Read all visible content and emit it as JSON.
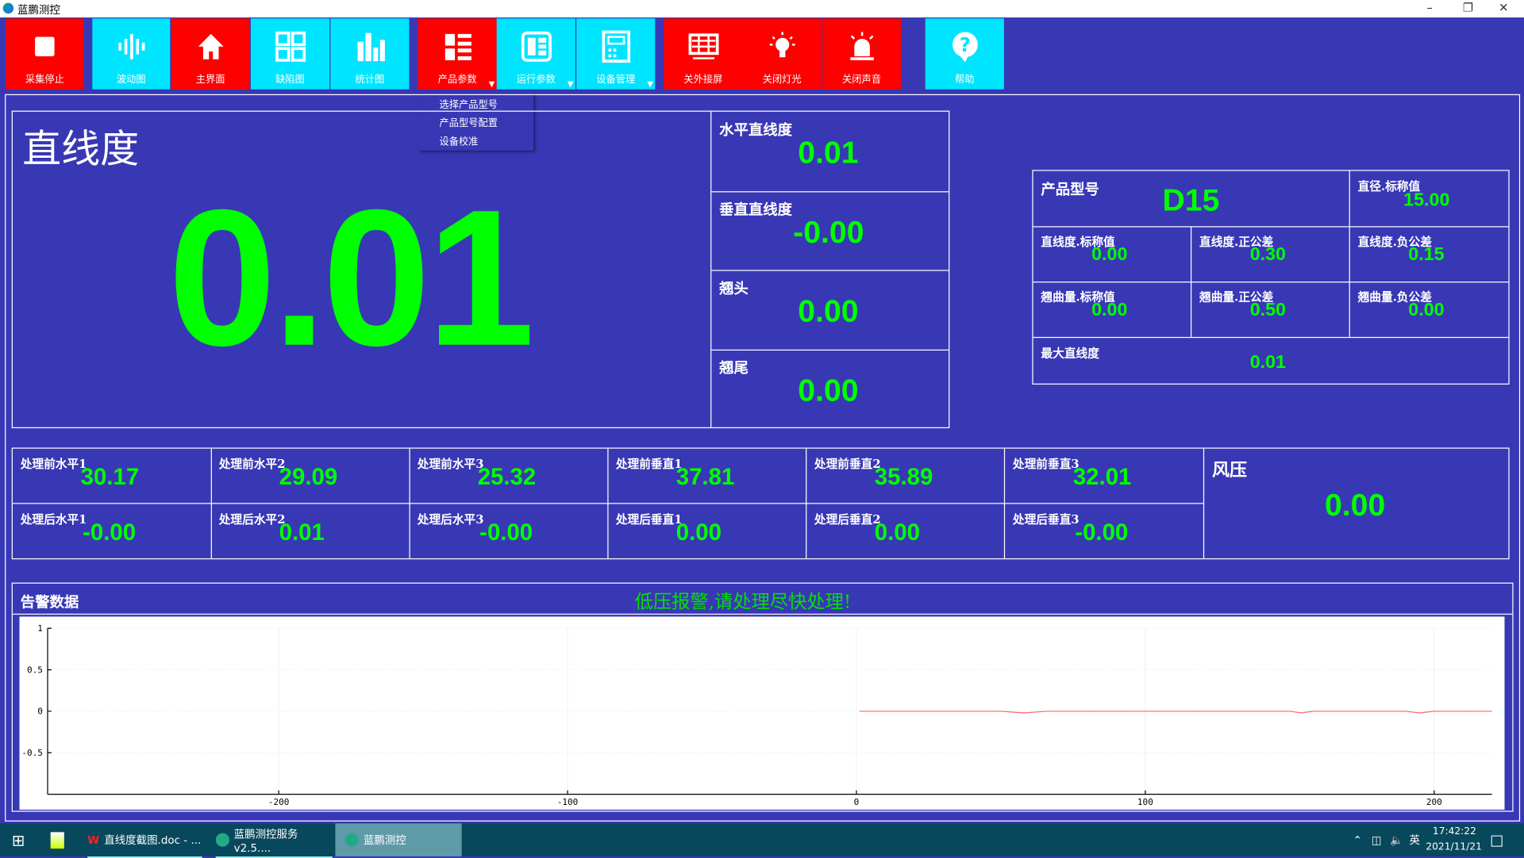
{
  "window": {
    "title": "蓝鹏测控"
  },
  "toolbar": [
    {
      "label": "采集停止",
      "icon": "stop-icon",
      "color": "#ff0000"
    },
    {
      "label": "波动图",
      "icon": "waveform-icon",
      "color": "#00e5ff"
    },
    {
      "label": "主界面",
      "icon": "home-icon",
      "color": "#ff0000"
    },
    {
      "label": "缺陷图",
      "icon": "defect-grid-icon",
      "color": "#00e5ff"
    },
    {
      "label": "统计图",
      "icon": "bar-chart-icon",
      "color": "#00e5ff"
    },
    {
      "label": "产品参数",
      "icon": "list-icon",
      "color": "#ff0000",
      "dropdown": true
    },
    {
      "label": "运行参数",
      "icon": "table-icon",
      "color": "#00e5ff",
      "dropdown": true
    },
    {
      "label": "设备管理",
      "icon": "device-icon",
      "color": "#00e5ff",
      "dropdown": true
    },
    {
      "label": "关外接屏",
      "icon": "monitor-icon",
      "color": "#ff0000"
    },
    {
      "label": "关闭灯光",
      "icon": "bulb-icon",
      "color": "#ff0000"
    },
    {
      "label": "关闭声音",
      "icon": "alarm-icon",
      "color": "#ff0000"
    },
    {
      "label": "帮助",
      "icon": "help-icon",
      "color": "#00e5ff"
    }
  ],
  "dropdown_menu": [
    "选择产品型号",
    "产品型号配置",
    "设备校准"
  ],
  "main": {
    "title": "直线度",
    "value": "0.01"
  },
  "side": [
    {
      "label": "水平直线度",
      "value": "0.01"
    },
    {
      "label": "垂直直线度",
      "value": "-0.00"
    },
    {
      "label": "翘头",
      "value": "0.00"
    },
    {
      "label": "翘尾",
      "value": "0.00"
    }
  ],
  "product": {
    "model_label": "产品型号",
    "model": "D15",
    "diameter": {
      "label": "直径.标称值",
      "value": "15.00"
    },
    "cells": [
      {
        "label": "直线度.标称值",
        "value": "0.00"
      },
      {
        "label": "直线度.正公差",
        "value": "0.30"
      },
      {
        "label": "直线度.负公差",
        "value": "0.15"
      },
      {
        "label": "翘曲量.标称值",
        "value": "0.00"
      },
      {
        "label": "翘曲量.正公差",
        "value": "0.50"
      },
      {
        "label": "翘曲量.负公差",
        "value": "0.00"
      }
    ],
    "max": {
      "label": "最大直线度",
      "value": "0.01"
    }
  },
  "measurements": {
    "before": [
      {
        "label": "处理前水平1",
        "value": "30.17"
      },
      {
        "label": "处理前水平2",
        "value": "29.09"
      },
      {
        "label": "处理前水平3",
        "value": "25.32"
      },
      {
        "label": "处理前垂直1",
        "value": "37.81"
      },
      {
        "label": "处理前垂直2",
        "value": "35.89"
      },
      {
        "label": "处理前垂直3",
        "value": "32.01"
      }
    ],
    "after": [
      {
        "label": "处理后水平1",
        "value": "-0.00"
      },
      {
        "label": "处理后水平2",
        "value": "0.01"
      },
      {
        "label": "处理后水平3",
        "value": "-0.00"
      },
      {
        "label": "处理后垂直1",
        "value": "0.00"
      },
      {
        "label": "处理后垂直2",
        "value": "0.00"
      },
      {
        "label": "处理后垂直3",
        "value": "-0.00"
      }
    ],
    "wind": {
      "label": "风压",
      "value": "0.00"
    }
  },
  "alarm": {
    "title": "告警数据",
    "message": "低压报警,请处理尽快处理!"
  },
  "chart_data": {
    "type": "line",
    "xlim": [
      -280,
      220
    ],
    "ylim": [
      -1,
      1
    ],
    "xticks": [
      -200,
      -100,
      0,
      100,
      200
    ],
    "yticks": [
      1,
      0.5,
      0,
      -0.5
    ],
    "grid": true,
    "series": [
      {
        "color": "#ff0000",
        "x": [
          1,
          50,
          58,
          66,
          150,
          154,
          158,
          190,
          195,
          200,
          220
        ],
        "y": [
          0,
          0,
          -0.02,
          0,
          0,
          -0.02,
          0,
          0,
          -0.02,
          0,
          0
        ]
      }
    ]
  },
  "taskbar": {
    "tasks": [
      {
        "label": "直线度截图.doc - ..."
      },
      {
        "label": "蓝鹏测控服务v2.5...."
      },
      {
        "label": "蓝鹏测控"
      }
    ],
    "ime": "英",
    "time": "17:42:22",
    "date": "2021/11/21"
  },
  "colors": {
    "background": "#3838b5",
    "value": "#00ff00",
    "red": "#ff0000",
    "cyan": "#00e5ff"
  }
}
